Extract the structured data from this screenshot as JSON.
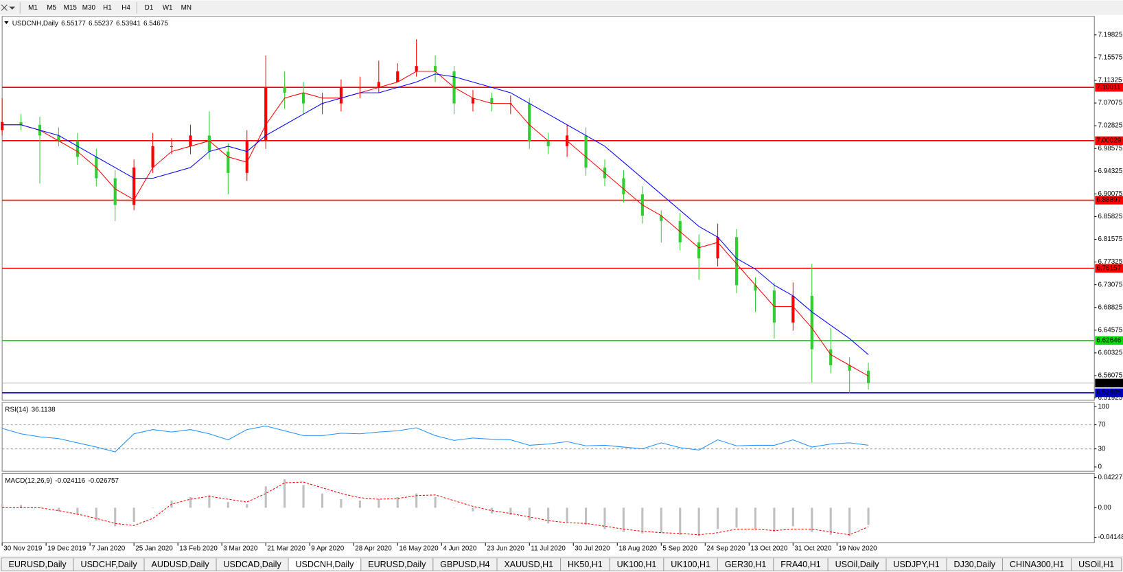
{
  "toolbar": {
    "timeframes": [
      "M1",
      "M5",
      "M15",
      "M30",
      "H1",
      "H4",
      "D1",
      "W1",
      "MN"
    ]
  },
  "chart_data": [
    {
      "type": "candlestick",
      "title": "USDCNH,Daily",
      "header_values": [
        6.55177,
        6.55237,
        6.53941,
        6.54675
      ],
      "up_color": "#ff0000",
      "down_color": "#32cd32",
      "xlim": [
        0,
        348
      ],
      "ylim": [
        6.5146,
        7.2331
      ],
      "yticks": [
        7.19825,
        7.15575,
        7.11325,
        7.07075,
        7.02825,
        6.98575,
        6.94325,
        6.90075,
        6.85825,
        6.81575,
        6.77325,
        6.73075,
        6.68825,
        6.64575,
        6.60325,
        6.56075,
        6.51925
      ],
      "levels": [
        {
          "value": 7.10011,
          "color": "#ff0000"
        },
        {
          "value": 7.00029,
          "color": "#ff0000"
        },
        {
          "value": 6.88897,
          "color": "#ff0000"
        },
        {
          "value": 6.76157,
          "color": "#ff0000"
        },
        {
          "value": 6.62646,
          "color": "#00dd00"
        },
        {
          "value": 6.52865,
          "color": "#0000cc"
        },
        {
          "value": 6.54675,
          "color": "#000000"
        }
      ],
      "x": [
        0,
        6,
        12,
        18,
        24,
        30,
        36,
        42,
        48,
        54,
        60,
        66,
        72,
        78,
        84,
        90,
        96,
        102,
        108,
        114,
        120,
        126,
        132,
        138,
        144,
        150,
        156,
        162,
        168,
        174,
        180,
        186,
        192,
        198,
        204,
        210,
        216,
        222,
        228,
        234,
        240,
        246,
        252,
        258,
        264,
        270,
        276
      ],
      "open": [
        7.02,
        7.035,
        7.03,
        7.01,
        7.0,
        6.97,
        6.93,
        6.88,
        6.95,
        6.99,
        6.99,
        7.01,
        6.98,
        6.94,
        7.0,
        7.1,
        7.09,
        7.07,
        7.07,
        7.1,
        7.1,
        7.11,
        7.13,
        7.14,
        7.13,
        7.07,
        7.08,
        7.07,
        7.07,
        7.0,
        6.99,
        7.01,
        6.95,
        6.93,
        6.9,
        6.86,
        6.85,
        6.81,
        6.78,
        6.82,
        6.73,
        6.72,
        6.66,
        6.71,
        6.61,
        6.58,
        6.57
      ],
      "high": [
        7.08,
        7.05,
        7.045,
        7.025,
        7.015,
        6.985,
        6.945,
        6.965,
        7.015,
        7.005,
        7.03,
        7.055,
        6.995,
        7.02,
        7.16,
        7.13,
        7.11,
        7.09,
        7.115,
        7.12,
        7.15,
        7.145,
        7.19,
        7.16,
        7.14,
        7.095,
        7.09,
        7.085,
        7.08,
        7.015,
        7.03,
        7.025,
        6.965,
        6.945,
        6.915,
        6.87,
        6.865,
        6.825,
        6.845,
        6.835,
        6.745,
        6.735,
        6.735,
        6.77,
        6.65,
        6.595,
        6.585
      ],
      "low": [
        7.01,
        7.02,
        6.92,
        6.99,
        6.955,
        6.915,
        6.85,
        6.87,
        6.94,
        6.975,
        6.975,
        6.965,
        6.9,
        6.925,
        6.985,
        7.06,
        7.05,
        7.05,
        7.055,
        7.08,
        7.09,
        7.11,
        7.12,
        7.11,
        7.05,
        7.055,
        7.055,
        7.05,
        6.985,
        6.975,
        6.97,
        6.935,
        6.915,
        6.885,
        6.845,
        6.81,
        6.795,
        6.74,
        6.765,
        6.715,
        6.68,
        6.63,
        6.645,
        6.548,
        6.565,
        6.528,
        6.535
      ],
      "close": [
        7.035,
        7.03,
        7.01,
        7.0,
        6.97,
        6.93,
        6.88,
        6.95,
        6.99,
        6.99,
        7.01,
        6.98,
        6.94,
        7.0,
        7.1,
        7.09,
        7.07,
        7.07,
        7.1,
        7.1,
        7.11,
        7.13,
        7.14,
        7.13,
        7.07,
        7.08,
        7.07,
        7.07,
        7.0,
        6.99,
        7.01,
        6.95,
        6.93,
        6.9,
        6.86,
        6.85,
        6.81,
        6.78,
        6.82,
        6.73,
        6.72,
        6.66,
        6.71,
        6.61,
        6.58,
        6.57,
        6.547
      ],
      "overlays": [
        {
          "color": "#ff0000",
          "values": [
            7.03,
            7.03,
            7.02,
            7.0,
            6.98,
            6.95,
            6.91,
            6.89,
            6.95,
            6.98,
            6.99,
            7.0,
            6.97,
            6.96,
            7.03,
            7.08,
            7.09,
            7.08,
            7.08,
            7.09,
            7.1,
            7.11,
            7.13,
            7.13,
            7.1,
            7.08,
            7.07,
            7.07,
            7.03,
            7.0,
            7.0,
            6.97,
            6.94,
            6.91,
            6.88,
            6.86,
            6.83,
            6.8,
            6.81,
            6.77,
            6.73,
            6.69,
            6.69,
            6.65,
            6.6,
            6.58,
            6.56
          ]
        },
        {
          "color": "#0000ff",
          "values": [
            7.03,
            7.03,
            7.02,
            7.01,
            6.99,
            6.97,
            6.95,
            6.93,
            6.93,
            6.94,
            6.95,
            6.98,
            6.99,
            6.98,
            7.01,
            7.03,
            7.05,
            7.07,
            7.08,
            7.09,
            7.09,
            7.1,
            7.11,
            7.125,
            7.12,
            7.11,
            7.1,
            7.09,
            7.07,
            7.05,
            7.03,
            7.01,
            6.99,
            6.96,
            6.93,
            6.9,
            6.87,
            6.84,
            6.82,
            6.78,
            6.76,
            6.73,
            6.71,
            6.68,
            6.655,
            6.63,
            6.6
          ]
        }
      ]
    },
    {
      "type": "line",
      "title": "RSI(14)",
      "header_values": [
        36.1138
      ],
      "xlim": [
        0,
        348
      ],
      "ylim": [
        -7.1,
        107.1
      ],
      "yticks": [
        100,
        70,
        30,
        0
      ],
      "levels": [
        70,
        30
      ],
      "x": [
        0,
        6,
        12,
        18,
        24,
        30,
        36,
        42,
        48,
        54,
        60,
        66,
        72,
        78,
        84,
        90,
        96,
        102,
        108,
        114,
        120,
        126,
        132,
        138,
        144,
        150,
        156,
        162,
        168,
        174,
        180,
        186,
        192,
        198,
        204,
        210,
        216,
        222,
        228,
        234,
        240,
        246,
        252,
        258,
        264,
        270,
        276
      ],
      "series": [
        {
          "color": "#1e90ff",
          "values": [
            64,
            55,
            50,
            47,
            40,
            33,
            25,
            55,
            62,
            58,
            62,
            55,
            45,
            62,
            68,
            60,
            52,
            52,
            56,
            55,
            58,
            60,
            65,
            52,
            44,
            48,
            46,
            45,
            36,
            38,
            42,
            35,
            36,
            33,
            30,
            40,
            32,
            28,
            45,
            35,
            36,
            36,
            45,
            33,
            38,
            40,
            36.1138
          ]
        }
      ]
    },
    {
      "type": "bar",
      "title": "MACD(12,26,9)",
      "header_values": [
        -0.024116,
        -0.026757
      ],
      "xlim": [
        0,
        348
      ],
      "ylim": [
        -0.0493,
        0.0483
      ],
      "yticks": [
        0.042275,
        {
          "value": 0,
          "label": "0.00"
        },
        -0.04148
      ],
      "x": [
        0,
        6,
        12,
        18,
        24,
        30,
        36,
        42,
        48,
        54,
        60,
        66,
        72,
        78,
        84,
        90,
        96,
        102,
        108,
        114,
        120,
        126,
        132,
        138,
        144,
        150,
        156,
        162,
        168,
        174,
        180,
        186,
        192,
        198,
        204,
        210,
        216,
        222,
        228,
        234,
        240,
        246,
        252,
        258,
        264,
        270,
        276
      ],
      "xticks": [
        {
          "value": 0,
          "label": "30 Nov 2019"
        },
        {
          "value": 14,
          "label": "19 Dec 2019"
        },
        {
          "value": 28,
          "label": "7 Jan 2020"
        },
        {
          "value": 42,
          "label": "25 Jan 2020"
        },
        {
          "value": 56,
          "label": "13 Feb 2020"
        },
        {
          "value": 70,
          "label": "3 Mar 2020"
        },
        {
          "value": 84,
          "label": "21 Mar 2020"
        },
        {
          "value": 98,
          "label": "9 Apr 2020"
        },
        {
          "value": 112,
          "label": "28 Apr 2020"
        },
        {
          "value": 126,
          "label": "16 May 2020"
        },
        {
          "value": 140,
          "label": "4 Jun 2020"
        },
        {
          "value": 154,
          "label": "23 Jun 2020"
        },
        {
          "value": 168,
          "label": "11 Jul 2020"
        },
        {
          "value": 182,
          "label": "30 Jul 2020"
        },
        {
          "value": 196,
          "label": "18 Aug 2020"
        },
        {
          "value": 210,
          "label": "5 Sep 2020"
        },
        {
          "value": 224,
          "label": "24 Sep 2020"
        },
        {
          "value": 238,
          "label": "13 Oct 2020"
        },
        {
          "value": 252,
          "label": "31 Oct 2020"
        },
        {
          "value": 266,
          "label": "19 Nov 2020"
        }
      ],
      "series": [
        {
          "kind": "bar",
          "color": "#c0c0c0",
          "values": [
            0.005,
            0.004,
            0.0,
            -0.005,
            -0.01,
            -0.018,
            -0.026,
            -0.02,
            0.0,
            0.01,
            0.015,
            0.018,
            0.008,
            0.005,
            0.03,
            0.04,
            0.032,
            0.02,
            0.012,
            0.01,
            0.012,
            0.015,
            0.02,
            0.015,
            0.0,
            -0.005,
            -0.008,
            -0.01,
            -0.018,
            -0.022,
            -0.02,
            -0.024,
            -0.03,
            -0.034,
            -0.036,
            -0.035,
            -0.038,
            -0.04,
            -0.03,
            -0.028,
            -0.03,
            -0.034,
            -0.026,
            -0.034,
            -0.038,
            -0.04,
            -0.024116
          ]
        },
        {
          "kind": "line",
          "dashed": true,
          "color": "#ff0000",
          "values": [
            0.0,
            0.0,
            0.0,
            -0.004,
            -0.009,
            -0.015,
            -0.022,
            -0.025,
            -0.015,
            0.005,
            0.012,
            0.016,
            0.012,
            0.008,
            0.02,
            0.035,
            0.036,
            0.028,
            0.02,
            0.014,
            0.012,
            0.013,
            0.017,
            0.018,
            0.01,
            0.002,
            -0.004,
            -0.008,
            -0.013,
            -0.018,
            -0.021,
            -0.022,
            -0.026,
            -0.03,
            -0.033,
            -0.035,
            -0.036,
            -0.038,
            -0.035,
            -0.03,
            -0.03,
            -0.032,
            -0.03,
            -0.03,
            -0.034,
            -0.038,
            -0.026757
          ]
        }
      ]
    }
  ],
  "tabs": [
    {
      "label": "EURUSD,Daily",
      "active": false
    },
    {
      "label": "USDCHF,Daily",
      "active": false
    },
    {
      "label": "AUDUSD,Daily",
      "active": false
    },
    {
      "label": "USDCAD,Daily",
      "active": false
    },
    {
      "label": "USDCNH,Daily",
      "active": true
    },
    {
      "label": "EURUSD,Daily",
      "active": false
    },
    {
      "label": "GBPUSD,H4",
      "active": false
    },
    {
      "label": "XAUUSD,H1",
      "active": false
    },
    {
      "label": "HK50,H1",
      "active": false
    },
    {
      "label": "UK100,H1",
      "active": false
    },
    {
      "label": "UK100,H1",
      "active": false
    },
    {
      "label": "GER30,H1",
      "active": false
    },
    {
      "label": "FRA40,H1",
      "active": false
    },
    {
      "label": "USOil,Daily",
      "active": false
    },
    {
      "label": "USDJPY,H1",
      "active": false
    },
    {
      "label": "DJ30,Daily",
      "active": false
    },
    {
      "label": "CHINA300,H1",
      "active": false
    },
    {
      "label": "USOil,H1",
      "active": false
    }
  ]
}
